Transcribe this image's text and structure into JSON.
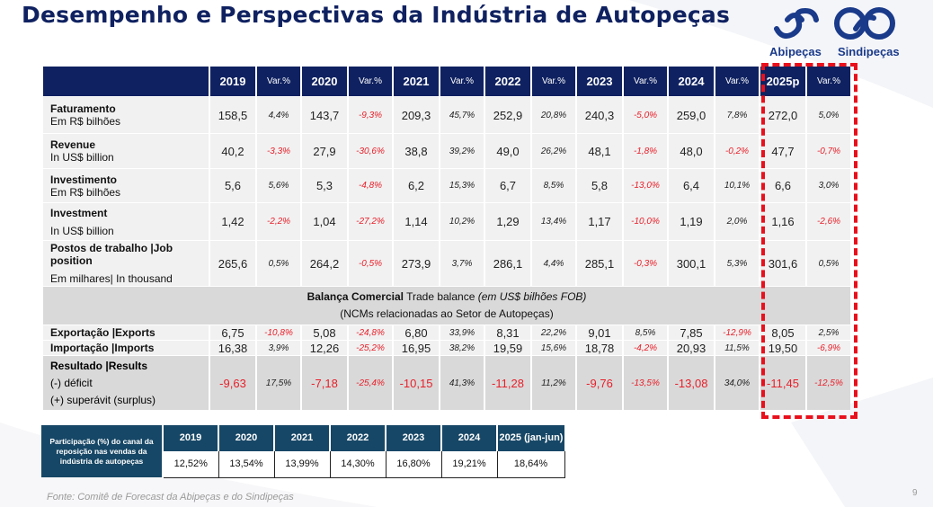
{
  "title": "Desempenho e Perspectivas da Indústria de Autopeças",
  "logos": {
    "left": "Abipeças",
    "right": "Sindipeças"
  },
  "colors": {
    "header_navy": "#0f2160",
    "negative_red": "#e8202a",
    "highlight_dash": "#e8101c",
    "share_header": "#174766"
  },
  "main_table": {
    "columns": [
      {
        "year": "2019",
        "var": "Var.%"
      },
      {
        "year": "2020",
        "var": "Var.%"
      },
      {
        "year": "2021",
        "var": "Var.%"
      },
      {
        "year": "2022",
        "var": "Var.%"
      },
      {
        "year": "2023",
        "var": "Var.%"
      },
      {
        "year": "2024",
        "var": "Var.%"
      },
      {
        "year": "2025p",
        "var": "Var.%"
      }
    ],
    "rows": [
      {
        "label": "Faturamento",
        "sublabel": "Em R$ bilhões",
        "cells": [
          "158,5",
          "4,4%",
          "143,7",
          "-9,3%",
          "209,3",
          "45,7%",
          "252,9",
          "20,8%",
          "240,3",
          "-5,0%",
          "259,0",
          "7,8%",
          "272,0",
          "5,0%"
        ]
      },
      {
        "label": "Revenue",
        "sublabel": "In US$ billion",
        "cells": [
          "40,2",
          "-3,3%",
          "27,9",
          "-30,6%",
          "38,8",
          "39,2%",
          "49,0",
          "26,2%",
          "48,1",
          "-1,8%",
          "48,0",
          "-0,2%",
          "47,7",
          "-0,7%"
        ]
      },
      {
        "label": "Investimento",
        "sublabel": "Em R$ bilhões",
        "cells": [
          "5,6",
          "5,6%",
          "5,3",
          "-4,8%",
          "6,2",
          "15,3%",
          "6,7",
          "8,5%",
          "5,8",
          "-13,0%",
          "6,4",
          "10,1%",
          "6,6",
          "3,0%"
        ]
      },
      {
        "label": "Investment",
        "sublabel": "In US$ billion",
        "cells": [
          "1,42",
          "-2,2%",
          "1,04",
          "-27,2%",
          "1,14",
          "10,2%",
          "1,29",
          "13,4%",
          "1,17",
          "-10,0%",
          "1,19",
          "2,0%",
          "1,16",
          "-2,6%"
        ]
      },
      {
        "label": "Postos de trabalho |Job position",
        "sublabel": "Em milhares| In thousand",
        "cells": [
          "265,6",
          "0,5%",
          "264,2",
          "-0,5%",
          "273,9",
          "3,7%",
          "286,1",
          "4,4%",
          "285,1",
          "-0,3%",
          "300,1",
          "5,3%",
          "301,6",
          "0,5%"
        ]
      }
    ],
    "trade_header": {
      "bold": "Balança Comercial",
      "normal": "Trade balance",
      "italic": "(em US$ bilhões FOB)",
      "line2": "(NCMs relacionadas ao Setor de Autopeças)"
    },
    "trade_rows": [
      {
        "label": "Exportação |Exports",
        "cells": [
          "6,75",
          "-10,8%",
          "5,08",
          "-24,8%",
          "6,80",
          "33,9%",
          "8,31",
          "22,2%",
          "9,01",
          "8,5%",
          "7,85",
          "-12,9%",
          "8,05",
          "2,5%"
        ]
      },
      {
        "label": "Importação |Imports",
        "cells": [
          "16,38",
          "3,9%",
          "12,26",
          "-25,2%",
          "16,95",
          "38,2%",
          "19,59",
          "15,6%",
          "18,78",
          "-4,2%",
          "20,93",
          "11,5%",
          "19,50",
          "-6,9%"
        ]
      }
    ],
    "result_row": {
      "label": "Resultado |Results",
      "line2": "(-) déficit",
      "line3": "(+) superávit (surplus)",
      "cells": [
        "-9,63",
        "17,5%",
        "-7,18",
        "-25,4%",
        "-10,15",
        "41,3%",
        "-11,28",
        "11,2%",
        "-9,76",
        "-13,5%",
        "-13,08",
        "34,0%",
        "-11,45",
        "-12,5%"
      ],
      "red_cells": [
        0,
        2,
        3,
        4,
        6,
        8,
        9,
        10,
        12,
        13
      ]
    }
  },
  "share_table": {
    "label": "Participação (%) do canal da reposição nas vendas da indústria de autopeças",
    "years": [
      "2019",
      "2020",
      "2021",
      "2022",
      "2023",
      "2024",
      "2025 (jan-jun)"
    ],
    "values": [
      "12,52%",
      "13,54%",
      "13,99%",
      "14,30%",
      "16,80%",
      "19,21%",
      "18,64%"
    ]
  },
  "footer": "Fonte: Comitê de Forecast da Abipeças e do Sindipeças",
  "page_number": "9"
}
